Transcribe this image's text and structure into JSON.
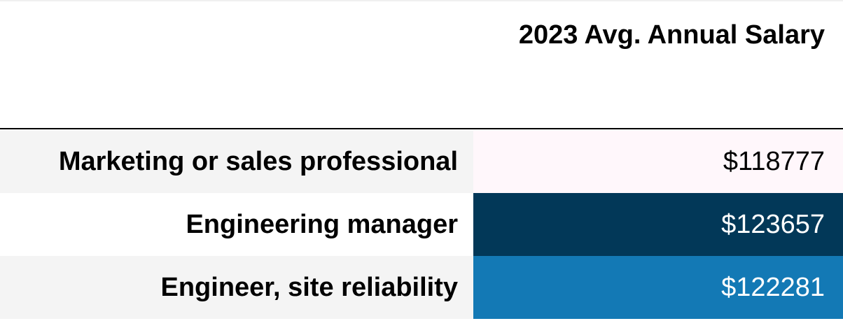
{
  "chart_data": {
    "type": "table",
    "title": "",
    "columns": [
      "",
      "2023 Avg. Annual Salary"
    ],
    "rows": [
      {
        "label": "Marketing or sales professional",
        "value": 118777,
        "display": "$118777",
        "cell_color": "#fff7fb",
        "text_color": "#000000",
        "label_bg": "#f4f4f4"
      },
      {
        "label": "Engineering manager",
        "value": 123657,
        "display": "$123657",
        "cell_color": "#023858",
        "text_color": "#ffffff",
        "label_bg": "#ffffff"
      },
      {
        "label": "Engineer, site reliability",
        "value": 122281,
        "display": "$122281",
        "cell_color": "#1379b5",
        "text_color": "#ffffff",
        "label_bg": "#f4f4f4"
      }
    ]
  }
}
